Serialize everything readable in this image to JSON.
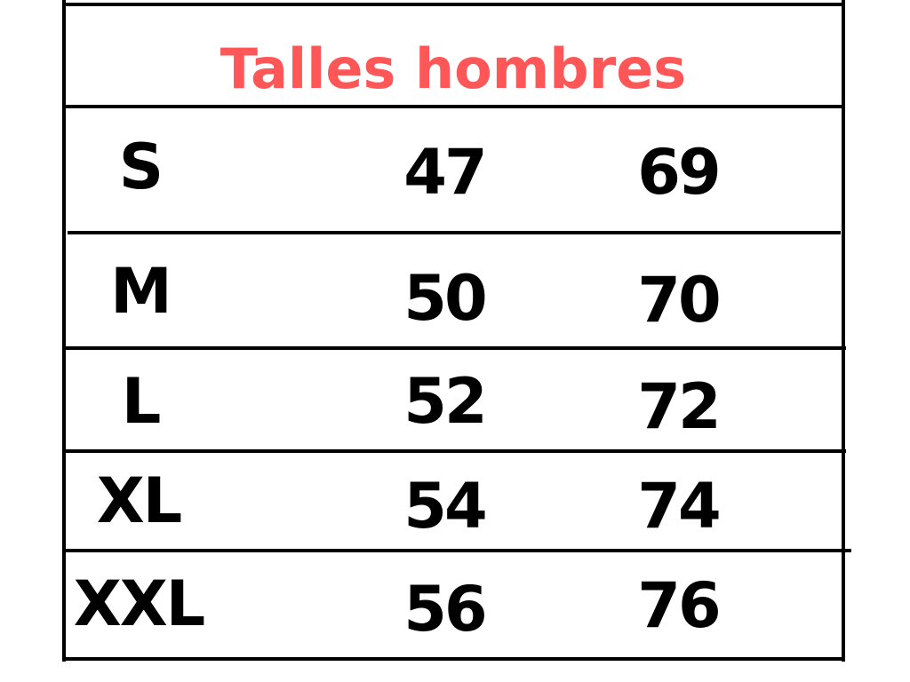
{
  "title": "Talles hombres",
  "title_color": "#ff5757",
  "rows": [
    {
      "size": "S",
      "a": "47",
      "b": "69"
    },
    {
      "size": "M",
      "a": "50",
      "b": "70"
    },
    {
      "size": "L",
      "a": "52",
      "b": "72"
    },
    {
      "size": "XL",
      "a": "54",
      "b": "74"
    },
    {
      "size": "XXL",
      "a": "56",
      "b": "76"
    }
  ]
}
